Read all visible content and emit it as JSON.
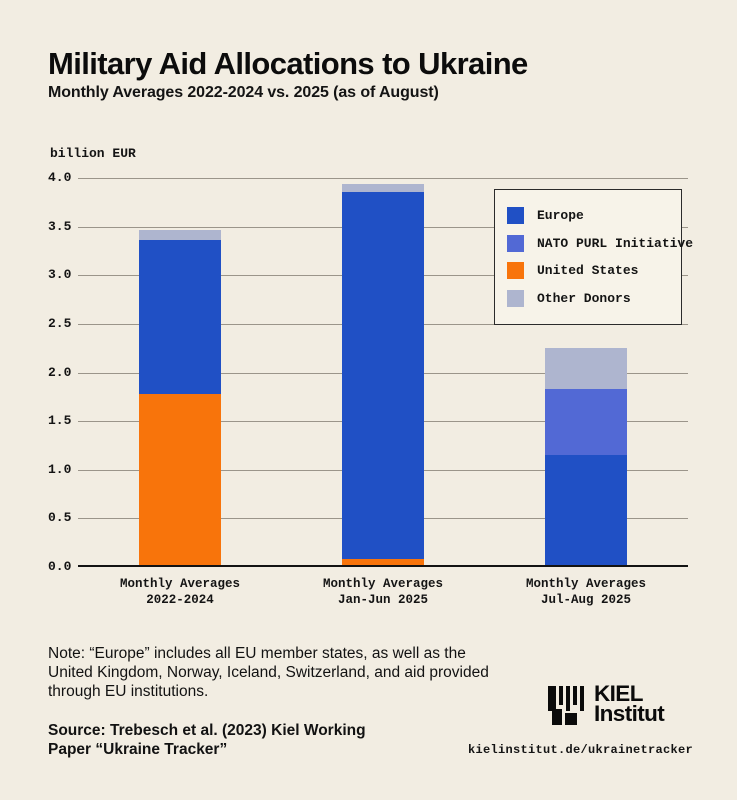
{
  "page": {
    "background": "#f2ede2"
  },
  "header": {
    "title": "Military Aid Allocations to Ukraine",
    "subtitle": "Monthly Averages 2022-2024 vs. 2025 (as of August)"
  },
  "chart_data": {
    "type": "bar",
    "stacked": true,
    "title": "Military Aid Allocations to Ukraine",
    "unit_label": "billion EUR",
    "ylim": [
      0,
      4
    ],
    "ytick_labels": [
      "0.0",
      "0.5",
      "1.0",
      "1.5",
      "2.0",
      "2.5",
      "3.0",
      "3.5",
      "4.0"
    ],
    "grid": true,
    "categories": [
      [
        "Monthly Averages",
        "2022-2024"
      ],
      [
        "Monthly Averages",
        "Jan-Jun 2025"
      ],
      [
        "Monthly Averages",
        "Jul-Aug 2025"
      ]
    ],
    "series": [
      {
        "name": "United States",
        "color": "#f8740b",
        "values": [
          1.78,
          0.08,
          0
        ]
      },
      {
        "name": "Europe",
        "color": "#2050c5",
        "values": [
          1.58,
          3.78,
          1.15
        ]
      },
      {
        "name": "NATO PURL Initiative",
        "color": "#5269d5",
        "values": [
          0,
          0,
          0.68
        ]
      },
      {
        "name": "Other Donors",
        "color": "#aeb5cf",
        "values": [
          0.1,
          0.08,
          0.42
        ]
      }
    ],
    "stack_order_note": "series listed bottom-to-top",
    "totals": [
      3.46,
      3.94,
      2.25
    ],
    "legend": {
      "position": "top-right",
      "order": [
        "Europe",
        "NATO PURL Initiative",
        "United States",
        "Other Donors"
      ]
    }
  },
  "footer": {
    "note": [
      "Note: “Europe” includes all EU member states, as well as the",
      "United Kingdom, Norway, Iceland, Switzerland, and aid provided",
      "through EU institutions."
    ],
    "source": [
      "Source: Trebesch et al. (2023) Kiel Working",
      "Paper “Ukraine Tracker”"
    ],
    "logo": {
      "line1": "KIEL",
      "line2": "Institut"
    },
    "url": "kielinstitut.de/ukrainetracker"
  }
}
